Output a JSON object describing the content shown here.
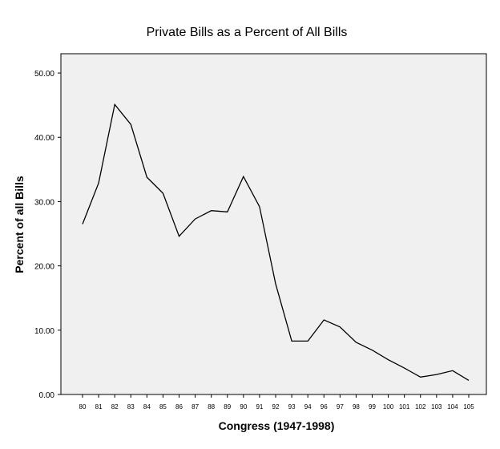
{
  "chart_data": {
    "type": "line",
    "title": "Private Bills as a Percent of All Bills",
    "xlabel": "Congress (1947-1998)",
    "ylabel": "Percent of all Bills",
    "categories": [
      "80",
      "81",
      "82",
      "83",
      "84",
      "85",
      "86",
      "87",
      "88",
      "89",
      "90",
      "91",
      "92",
      "93",
      "94",
      "96",
      "97",
      "98",
      "99",
      "100",
      "101",
      "102",
      "103",
      "104",
      "105"
    ],
    "series": [
      {
        "values": [
          26.5,
          32.9,
          45.1,
          42.0,
          33.8,
          31.3,
          24.6,
          27.3,
          28.6,
          28.4,
          33.9,
          29.2,
          17.2,
          8.3,
          8.3,
          11.6,
          10.5,
          8.1,
          6.9,
          5.4,
          4.1,
          2.7,
          3.1,
          3.7,
          2.2
        ]
      }
    ],
    "ylim": [
      0,
      53
    ],
    "yticks": [
      0,
      10,
      20,
      30,
      40,
      50
    ],
    "ytick_labels": [
      "0.00",
      "10.00",
      "20.00",
      "30.00",
      "40.00",
      "50.00"
    ],
    "grid": false,
    "plot_background": "#f0f0f0",
    "line_color": "#000000"
  }
}
